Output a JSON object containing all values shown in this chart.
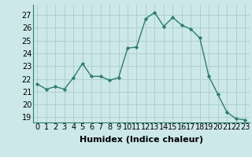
{
  "x": [
    0,
    1,
    2,
    3,
    4,
    5,
    6,
    7,
    8,
    9,
    10,
    11,
    12,
    13,
    14,
    15,
    16,
    17,
    18,
    19,
    20,
    21,
    22,
    23
  ],
  "y": [
    21.6,
    21.2,
    21.4,
    21.2,
    22.1,
    23.2,
    22.2,
    22.2,
    21.9,
    22.1,
    24.4,
    24.5,
    26.7,
    27.2,
    26.1,
    26.8,
    26.2,
    25.9,
    25.2,
    22.2,
    20.8,
    19.4,
    18.9,
    18.8
  ],
  "xlabel": "Humidex (Indice chaleur)",
  "ylim": [
    18.6,
    27.8
  ],
  "yticks": [
    19,
    20,
    21,
    22,
    23,
    24,
    25,
    26,
    27
  ],
  "xticks": [
    0,
    1,
    2,
    3,
    4,
    5,
    6,
    7,
    8,
    9,
    10,
    11,
    12,
    13,
    14,
    15,
    16,
    17,
    18,
    19,
    20,
    21,
    22,
    23
  ],
  "line_color": "#2e7d6e",
  "marker": "D",
  "marker_size": 2.2,
  "bg_color": "#cce8e8",
  "grid_color": "#aacccc",
  "xlabel_fontsize": 8,
  "tick_fontsize": 7,
  "linewidth": 1.0
}
